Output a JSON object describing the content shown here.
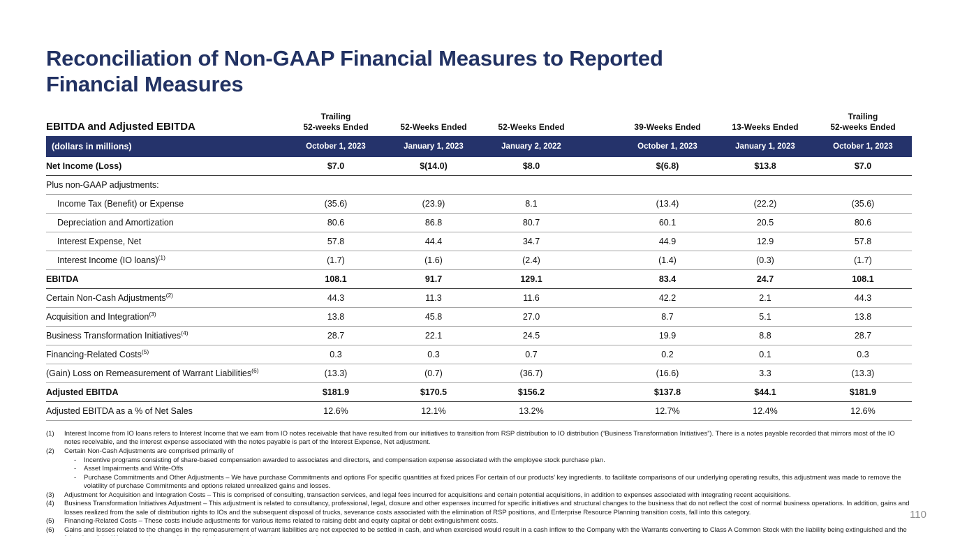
{
  "page": {
    "title": "Reconciliation of Non-GAAP Financial Measures to Reported Financial Measures",
    "page_number": "110"
  },
  "table": {
    "title": "EBITDA and Adjusted EBITDA",
    "subtitle": "(dollars in millions)",
    "bar_color": "#25336B",
    "columns": [
      {
        "period": "Trailing\n52-weeks Ended",
        "date": "October 1, 2023"
      },
      {
        "period": "52-Weeks Ended",
        "date": "January 1, 2023"
      },
      {
        "period": "52-Weeks Ended",
        "date": "January 2, 2022"
      },
      {
        "period": "39-Weeks Ended",
        "date": "October 1, 2023"
      },
      {
        "period": "13-Weeks Ended",
        "date": "January 1, 2023"
      },
      {
        "period": "Trailing\n52-weeks Ended",
        "date": "October 1, 2023"
      }
    ],
    "rows": [
      {
        "label": "Net Income (Loss)",
        "sup": "",
        "bold": true,
        "indent": false,
        "values": [
          "$7.0",
          "$(14.0)",
          "$8.0",
          "$(6.8)",
          "$13.8",
          "$7.0"
        ]
      },
      {
        "label": "Plus non-GAAP adjustments:",
        "sup": "",
        "bold": false,
        "indent": false,
        "values": [
          "",
          "",
          "",
          "",
          "",
          ""
        ]
      },
      {
        "label": "Income Tax (Benefit) or Expense",
        "sup": "",
        "bold": false,
        "indent": true,
        "values": [
          "(35.6)",
          "(23.9)",
          "8.1",
          "(13.4)",
          "(22.2)",
          "(35.6)"
        ]
      },
      {
        "label": "Depreciation and Amortization",
        "sup": "",
        "bold": false,
        "indent": true,
        "values": [
          "80.6",
          "86.8",
          "80.7",
          "60.1",
          "20.5",
          "80.6"
        ]
      },
      {
        "label": "Interest Expense, Net",
        "sup": "",
        "bold": false,
        "indent": true,
        "values": [
          "57.8",
          "44.4",
          "34.7",
          "44.9",
          "12.9",
          "57.8"
        ]
      },
      {
        "label": "Interest Income (IO loans)",
        "sup": "(1)",
        "bold": false,
        "indent": true,
        "values": [
          "(1.7)",
          "(1.6)",
          "(2.4)",
          "(1.4)",
          "(0.3)",
          "(1.7)"
        ]
      },
      {
        "label": "EBITDA",
        "sup": "",
        "bold": true,
        "indent": false,
        "values": [
          "108.1",
          "91.7",
          "129.1",
          "83.4",
          "24.7",
          "108.1"
        ]
      },
      {
        "label": "Certain Non-Cash Adjustments",
        "sup": "(2)",
        "bold": false,
        "indent": false,
        "values": [
          "44.3",
          "11.3",
          "11.6",
          "42.2",
          "2.1",
          "44.3"
        ]
      },
      {
        "label": "Acquisition and Integration",
        "sup": "(3)",
        "bold": false,
        "indent": false,
        "values": [
          "13.8",
          "45.8",
          "27.0",
          "8.7",
          "5.1",
          "13.8"
        ]
      },
      {
        "label": "Business Transformation Initiatives",
        "sup": "(4)",
        "bold": false,
        "indent": false,
        "values": [
          "28.7",
          "22.1",
          "24.5",
          "19.9",
          "8.8",
          "28.7"
        ]
      },
      {
        "label": "Financing-Related Costs",
        "sup": "(5)",
        "bold": false,
        "indent": false,
        "values": [
          "0.3",
          "0.3",
          "0.7",
          "0.2",
          "0.1",
          "0.3"
        ]
      },
      {
        "label": "(Gain) Loss on Remeasurement of Warrant Liabilities",
        "sup": "(6)",
        "bold": false,
        "indent": false,
        "values": [
          "(13.3)",
          "(0.7)",
          "(36.7)",
          "(16.6)",
          "3.3",
          "(13.3)"
        ]
      },
      {
        "label": "Adjusted EBITDA",
        "sup": "",
        "bold": true,
        "indent": false,
        "values": [
          "$181.9",
          "$170.5",
          "$156.2",
          "$137.8",
          "$44.1",
          "$181.9"
        ]
      },
      {
        "label": "Adjusted EBITDA as a % of Net Sales",
        "sup": "",
        "bold": false,
        "indent": false,
        "values": [
          "12.6%",
          "12.1%",
          "13.2%",
          "12.7%",
          "12.4%",
          "12.6%"
        ]
      }
    ]
  },
  "footnotes": [
    {
      "num": "(1)",
      "text": "Interest Income from IO loans refers to Interest Income that we earn from IO notes receivable that have resulted from our initiatives to transition from RSP distribution to IO distribution (“Business Transformation Initiatives”). There is a notes payable recorded that mirrors most of the IO notes receivable, and the interest expense associated with the notes payable is part of the Interest Expense, Net adjustment.",
      "bullets": []
    },
    {
      "num": "(2)",
      "text": "Certain Non-Cash Adjustments are comprised primarily of",
      "bullets": [
        "Incentive programs consisting of share-based compensation awarded to associates and directors, and compensation expense associated with the employee stock purchase plan.",
        "Asset Impairments and Write-Offs",
        "Purchase Commitments and Other Adjustments – We have purchase Commitments and options For specific quantities at fixed prices For certain of our products’ key ingredients. to facilitate comparisons of our underlying operating results, this adjustment was made to remove the volatility of purchase Commitments and options related unrealized gains and losses."
      ]
    },
    {
      "num": "(3)",
      "text": "Adjustment for Acquisition and Integration Costs – This is comprised of consulting, transaction services, and legal fees incurred for acquisitions and certain potential acquisitions, in addition to expenses associated with integrating recent acquisitions.",
      "bullets": []
    },
    {
      "num": "(4)",
      "text": "Business Transformation Initiatives Adjustment – This adjustment is related to consultancy, professional, legal, closure and other expenses incurred for specific initiatives and structural changes to the business that do not reflect the cost of normal business operations. In addition, gains and losses realized from the sale of distribution rights to IOs and the subsequent disposal of trucks, severance costs associated with the elimination of RSP positions, and Enterprise Resource Planning transition costs, fall into this category.",
      "bullets": []
    },
    {
      "num": "(5)",
      "text": "Financing-Related Costs – These costs include adjustments for various items related to raising debt and equity capital or debt extinguishment costs.",
      "bullets": []
    },
    {
      "num": "(6)",
      "text": "Gains and losses related to the changes in the remeasurement of warrant liabilities are not expected to be settled in cash, and when exercised would result in a cash inflow to the Company with the Warrants converting to Class A Common Stock with the liability being extinguished and the fair value of the Warrants at the time of exercise being recorded as an increase to equity.",
      "bullets": []
    }
  ],
  "colors": {
    "title_navy": "#223263",
    "bar_navy": "#25336B",
    "page_number_gray": "#8f8f8f"
  }
}
